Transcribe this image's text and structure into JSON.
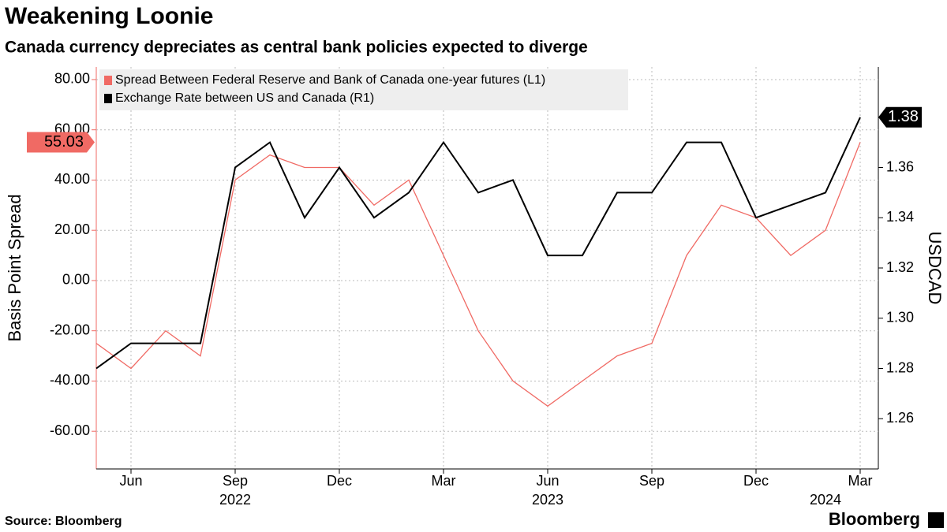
{
  "chart_data": {
    "type": "line",
    "title": "Weakening Loonie",
    "subtitle": "Canada currency depreciates as central bank policies expected to diverge",
    "y_label": "Basis Point Spread",
    "y2_label": "USDCAD",
    "source": "Source: Bloomberg",
    "brand": "Bloomberg",
    "x": [
      "2022-05",
      "2022-06",
      "2022-07",
      "2022-08",
      "2022-09",
      "2022-10",
      "2022-11",
      "2022-12",
      "2023-01",
      "2023-02",
      "2023-03",
      "2023-04",
      "2023-05",
      "2023-06",
      "2023-07",
      "2023-08",
      "2023-09",
      "2023-10",
      "2023-11",
      "2023-12",
      "2024-01",
      "2024-02",
      "2024-03"
    ],
    "xlim": [
      "2022-05",
      "2024-03"
    ],
    "xticks": [
      {
        "value": "2022-06",
        "label": "Jun"
      },
      {
        "value": "2022-09",
        "label": "Sep"
      },
      {
        "value": "2022-12",
        "label": "Dec"
      },
      {
        "value": "2023-03",
        "label": "Mar"
      },
      {
        "value": "2023-06",
        "label": "Jun"
      },
      {
        "value": "2023-09",
        "label": "Sep"
      },
      {
        "value": "2023-12",
        "label": "Dec"
      },
      {
        "value": "2024-03",
        "label": "Mar"
      }
    ],
    "x_year_labels": [
      {
        "value": "2022-09",
        "label": "2022"
      },
      {
        "value": "2023-06",
        "label": "2023"
      },
      {
        "value": "2024-02",
        "label": "2024"
      }
    ],
    "ylim": [
      -75,
      85
    ],
    "yticks": [
      {
        "value": -60,
        "label": "-60.00"
      },
      {
        "value": -40,
        "label": "-40.00"
      },
      {
        "value": -20,
        "label": "-20.00"
      },
      {
        "value": 0,
        "label": "0.00"
      },
      {
        "value": 20,
        "label": "20.00"
      },
      {
        "value": 40,
        "label": "40.00"
      },
      {
        "value": 60,
        "label": "60.00"
      },
      {
        "value": 80,
        "label": "80.00"
      }
    ],
    "y2lim": [
      1.24,
      1.4
    ],
    "y2ticks": [
      1.26,
      1.28,
      {
        "value": 1.3,
        "label": "1.30"
      },
      1.32,
      1.34,
      1.36,
      1.38
    ],
    "grid": true,
    "legend": "top-left",
    "series": [
      {
        "name": "Spread Between Federal Reserve and Bank of Canada one-year futures (L1)",
        "color": "#f06a64",
        "axis": "y",
        "values": [
          -25,
          -35,
          -20,
          -30,
          40,
          50,
          45,
          45,
          30,
          40,
          10,
          -20,
          -40,
          -50,
          -40,
          -30,
          -25,
          10,
          30,
          25,
          10,
          20,
          55.03
        ]
      },
      {
        "name": "Exchange Rate between US and Canada (R1)",
        "color": "#000000",
        "axis": "y2",
        "values": [
          1.28,
          1.29,
          1.29,
          1.29,
          1.36,
          1.37,
          1.34,
          1.36,
          1.34,
          1.35,
          1.37,
          1.35,
          1.355,
          1.325,
          1.325,
          1.35,
          1.35,
          1.37,
          1.37,
          1.34,
          1.345,
          1.35,
          1.38
        ]
      }
    ]
  }
}
